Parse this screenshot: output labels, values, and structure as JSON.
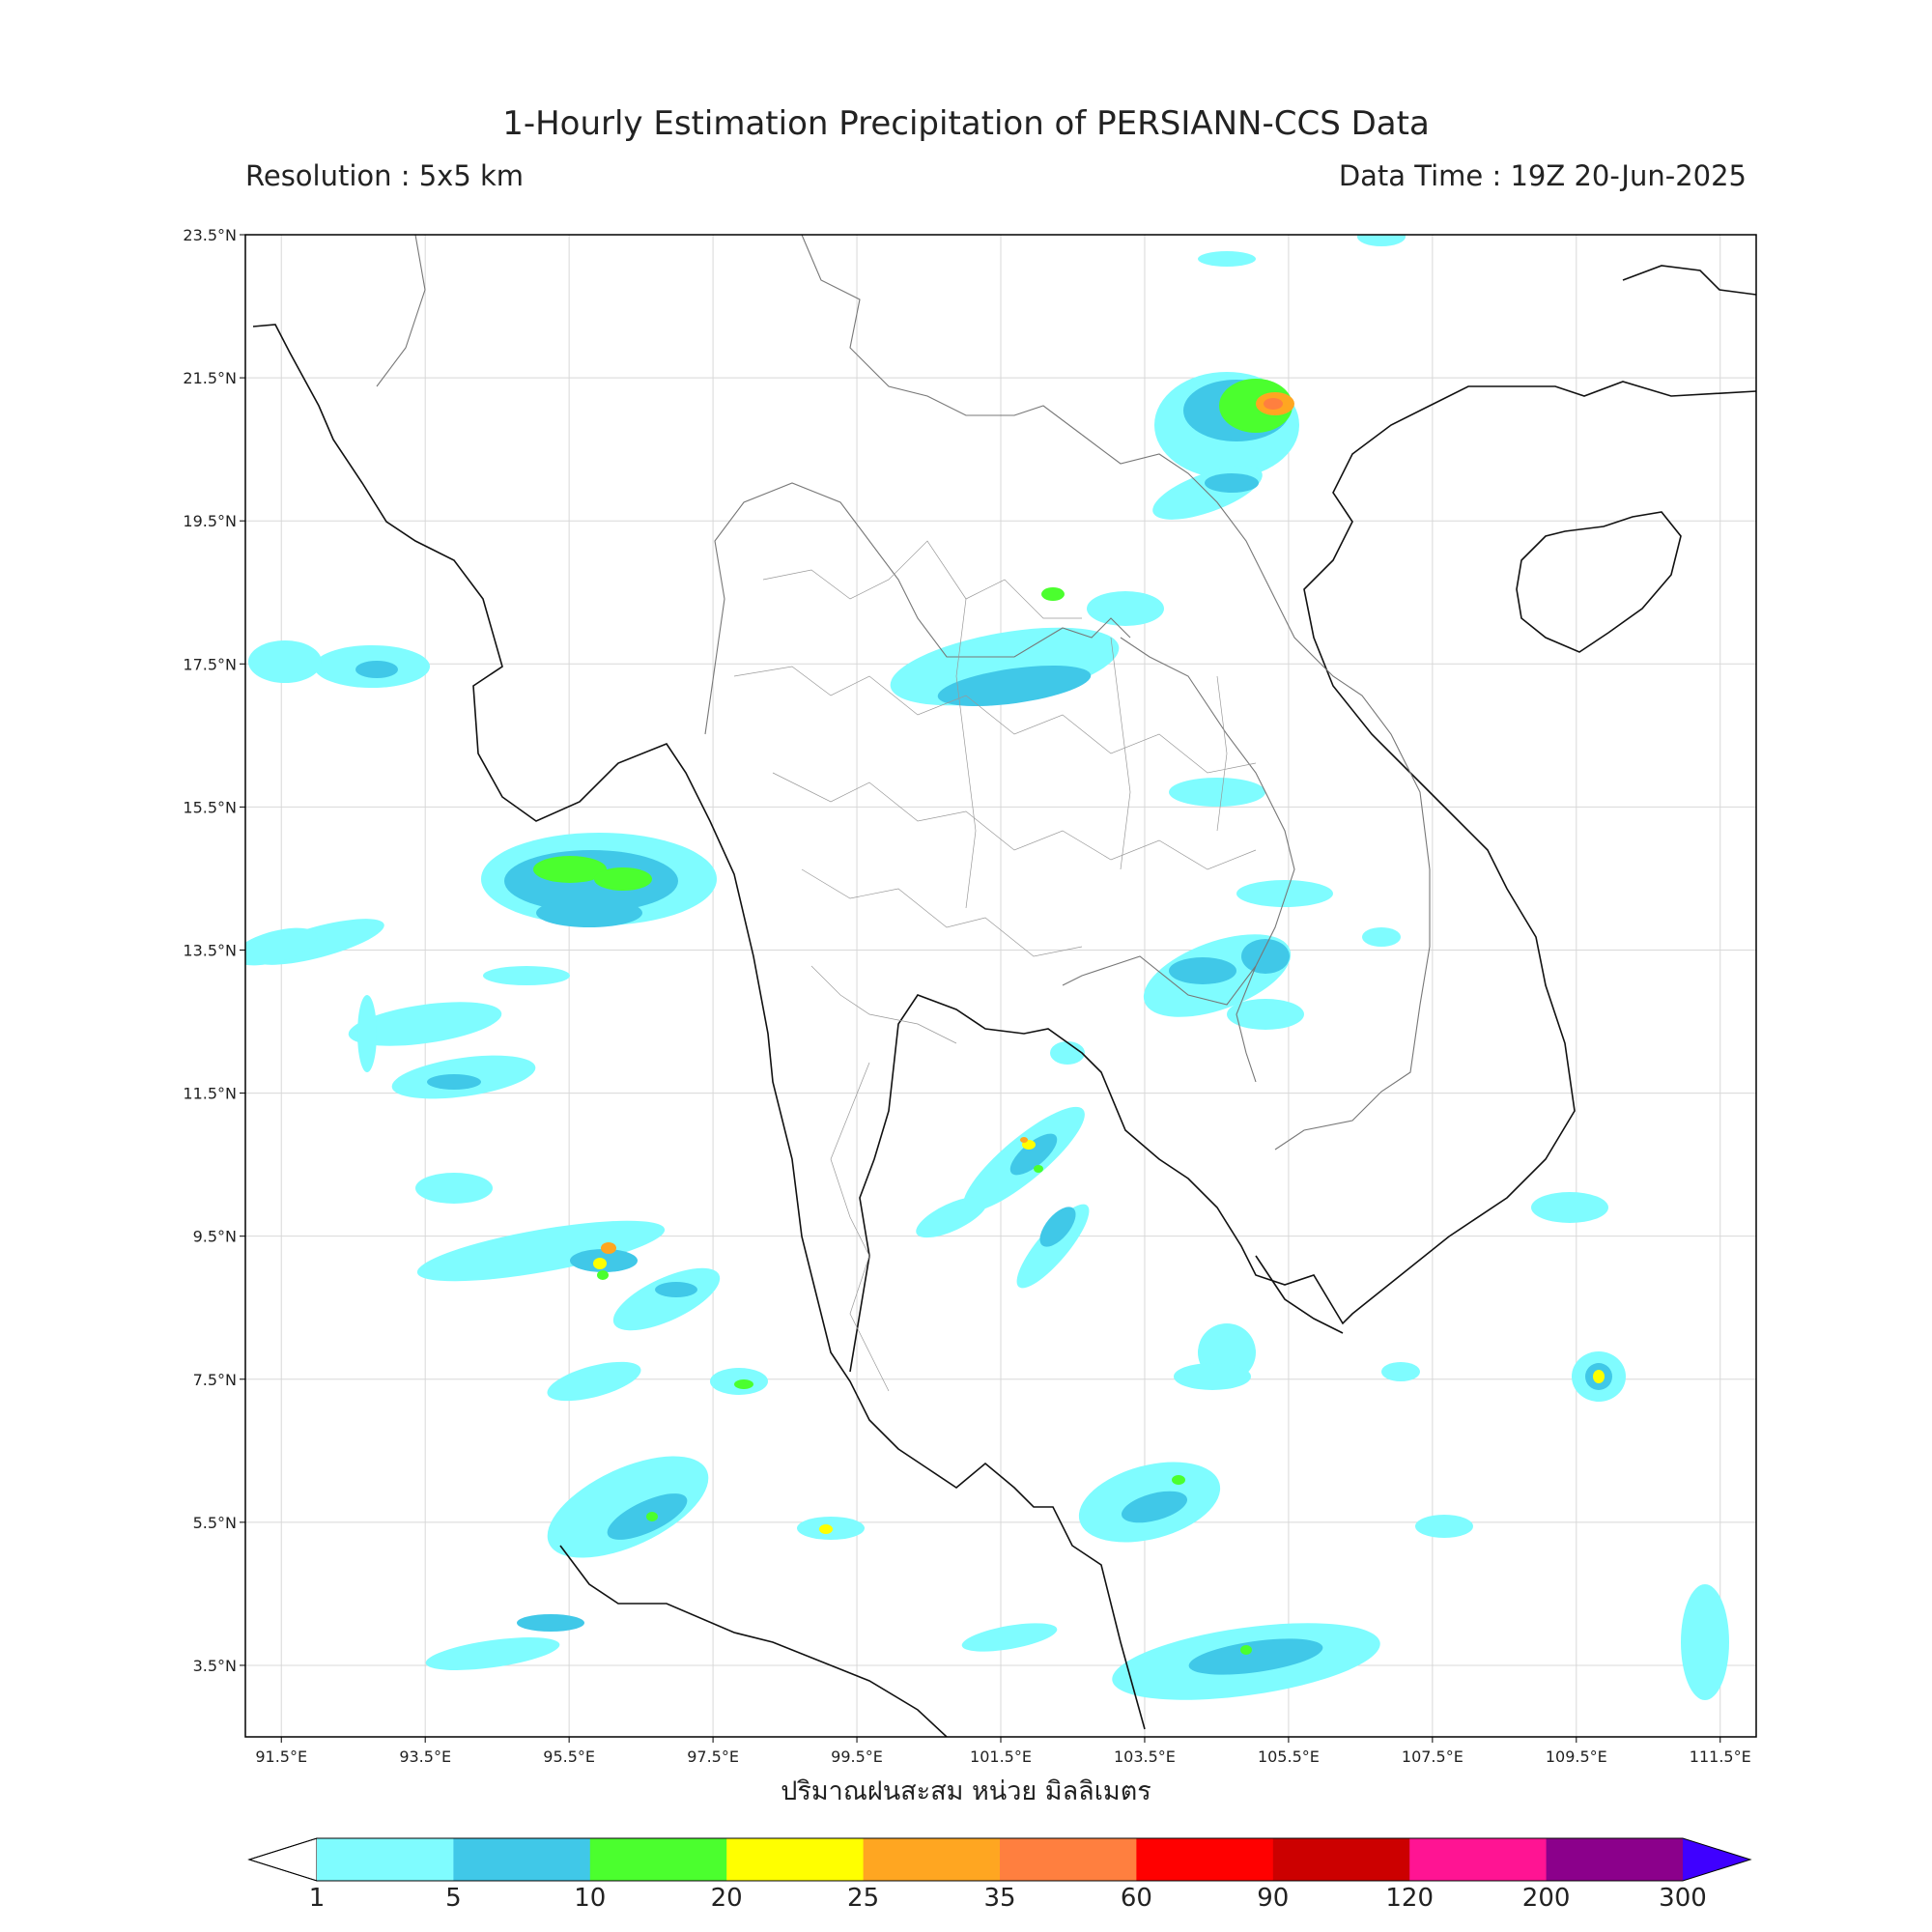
{
  "header": {
    "title": "1-Hourly Estimation Precipitation of PERSIANN-CCS Data",
    "resolution": "Resolution : 5x5 km",
    "data_time": "Data Time : 19Z 20-Jun-2025"
  },
  "map": {
    "lon_range": [
      91.0,
      112.0
    ],
    "lat_range": [
      2.5,
      23.5
    ],
    "lon_ticks": [
      "91.5°E",
      "93.5°E",
      "95.5°E",
      "97.5°E",
      "99.5°E",
      "101.5°E",
      "103.5°E",
      "105.5°E",
      "107.5°E",
      "109.5°E",
      "111.5°E"
    ],
    "lat_ticks": [
      "23.5°N",
      "21.5°N",
      "19.5°N",
      "17.5°N",
      "15.5°N",
      "13.5°N",
      "11.5°N",
      "9.5°N",
      "7.5°N",
      "5.5°N",
      "3.5°N"
    ],
    "grid": true
  },
  "x_axis_title": "ปริมาณฝนสะสม หน่วย มิลลิเมตร",
  "colorbar": {
    "levels": [
      "1",
      "5",
      "10",
      "20",
      "25",
      "35",
      "60",
      "90",
      "120",
      "200",
      "300"
    ],
    "colors": [
      "#7ffcff",
      "#40c8e8",
      "#4bff2e",
      "#ffff00",
      "#ffa621",
      "#ff7f3f",
      "#ff0000",
      "#cc0000",
      "#ff1493",
      "#8b008b"
    ],
    "extend_min_color": "#ffffff",
    "extend_max_color": "#3f00ff"
  },
  "rain_cells": [
    {
      "lon": 93.0,
      "lat": 17.9,
      "mm": 10
    },
    {
      "lon": 95.6,
      "lat": 15.2,
      "mm": 10
    },
    {
      "lon": 104.5,
      "lat": 21.3,
      "mm": 25
    },
    {
      "lon": 105.0,
      "lat": 21.4,
      "mm": 35
    },
    {
      "lon": 102.0,
      "lat": 11.5,
      "mm": 25
    },
    {
      "lon": 96.2,
      "lat": 9.6,
      "mm": 25
    },
    {
      "lon": 104.0,
      "lat": 6.5,
      "mm": 20
    },
    {
      "lon": 110.0,
      "lat": 8.0,
      "mm": 20
    },
    {
      "lon": 104.7,
      "lat": 4.2,
      "mm": 10
    },
    {
      "lon": 96.3,
      "lat": 5.9,
      "mm": 10
    }
  ]
}
